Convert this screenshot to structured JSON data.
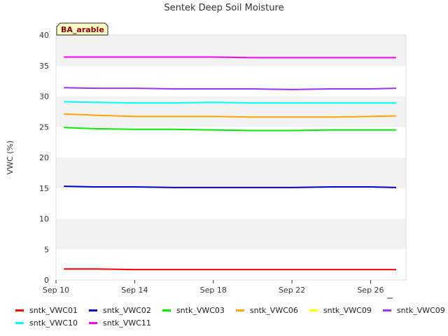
{
  "chart_data": {
    "type": "line",
    "title": "Sentek Deep Soil Moisture",
    "ylabel": "VWC (%)",
    "xlabel": "",
    "ylim": [
      0,
      40
    ],
    "yticks": [
      0,
      5,
      10,
      15,
      20,
      25,
      30,
      35,
      40
    ],
    "x_ticks": [
      "Sep 10",
      "Sep 14",
      "Sep 18",
      "Sep 22",
      "Sep 26"
    ],
    "x_tick_days": [
      10,
      14,
      18,
      22,
      26
    ],
    "x_range_days": [
      10,
      27.8
    ],
    "annotation": "BA_arable",
    "grid": true,
    "legend_position": "bottom",
    "series": [
      {
        "name": "sntk_VWC01",
        "color": "#ff0000",
        "x_days": [
          10.4,
          12,
          14,
          16,
          18,
          20,
          22,
          24,
          26,
          27.3
        ],
        "values": [
          1.8,
          1.8,
          1.7,
          1.7,
          1.7,
          1.7,
          1.7,
          1.7,
          1.7,
          1.7
        ]
      },
      {
        "name": "sntk_VWC02",
        "color": "#0000cc",
        "x_days": [
          10.4,
          12,
          14,
          16,
          18,
          20,
          22,
          24,
          26,
          27.3
        ],
        "values": [
          15.3,
          15.2,
          15.2,
          15.1,
          15.1,
          15.1,
          15.1,
          15.2,
          15.2,
          15.1
        ]
      },
      {
        "name": "sntk_VWC03",
        "color": "#00ee00",
        "x_days": [
          10.4,
          12,
          14,
          16,
          18,
          20,
          22,
          24,
          26,
          27.3
        ],
        "values": [
          24.9,
          24.7,
          24.6,
          24.6,
          24.5,
          24.4,
          24.4,
          24.5,
          24.5,
          24.5
        ]
      },
      {
        "name": "sntk_VWC06",
        "color": "#ffa500",
        "x_days": [
          10.4,
          12,
          14,
          16,
          18,
          20,
          22,
          24,
          26,
          27.3
        ],
        "values": [
          27.1,
          26.9,
          26.7,
          26.7,
          26.7,
          26.6,
          26.6,
          26.6,
          26.7,
          26.8
        ]
      },
      {
        "name": "sntk_VWC09",
        "color": "#ffff00",
        "x_days": [],
        "values": []
      },
      {
        "name": "sntk_VWC09",
        "color": "#9933ff",
        "x_days": [
          10.4,
          12,
          14,
          16,
          18,
          20,
          22,
          24,
          26,
          27.3
        ],
        "values": [
          31.4,
          31.3,
          31.3,
          31.2,
          31.2,
          31.2,
          31.1,
          31.2,
          31.2,
          31.3
        ]
      },
      {
        "name": "sntk_VWC10",
        "color": "#00ffff",
        "x_days": [
          10.4,
          12,
          14,
          16,
          18,
          20,
          22,
          24,
          26,
          27.3
        ],
        "values": [
          29.1,
          29.0,
          28.9,
          28.9,
          29.0,
          28.9,
          28.9,
          28.9,
          28.9,
          28.9
        ]
      },
      {
        "name": "sntk_VWC11",
        "color": "#ff00ff",
        "x_days": [
          10.4,
          12,
          14,
          16,
          18,
          20,
          22,
          24,
          26,
          27.3
        ],
        "values": [
          36.4,
          36.4,
          36.4,
          36.4,
          36.4,
          36.3,
          36.3,
          36.3,
          36.3,
          36.3
        ]
      }
    ]
  }
}
